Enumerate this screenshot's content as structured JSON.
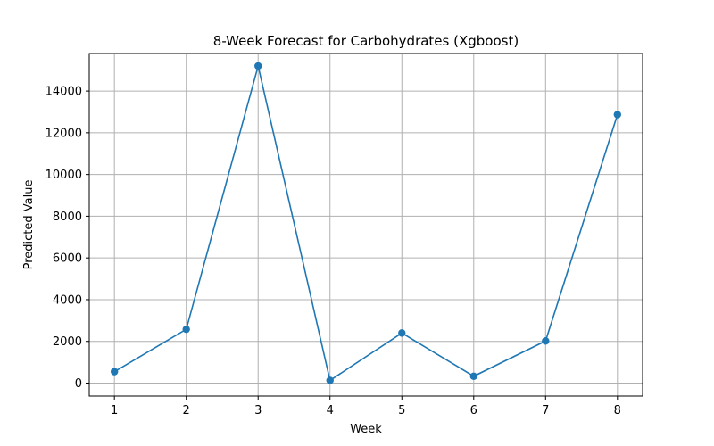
{
  "chart_data": {
    "type": "line",
    "title": "8-Week Forecast for Carbohydrates (Xgboost)",
    "xlabel": "Week",
    "ylabel": "Predicted Value",
    "x": [
      1,
      2,
      3,
      4,
      5,
      6,
      7,
      8
    ],
    "series": [
      {
        "name": "",
        "values": [
          550,
          2580,
          15200,
          130,
          2400,
          330,
          2020,
          12870
        ],
        "color": "#1f77b4",
        "marker": "circle"
      }
    ],
    "xticks": [
      1,
      2,
      3,
      4,
      5,
      6,
      7,
      8
    ],
    "yticks": [
      0,
      2000,
      4000,
      6000,
      8000,
      10000,
      12000,
      14000
    ],
    "xlim": [
      0.65,
      8.35
    ],
    "ylim": [
      -620,
      15800
    ],
    "grid": true,
    "legend": "none"
  }
}
